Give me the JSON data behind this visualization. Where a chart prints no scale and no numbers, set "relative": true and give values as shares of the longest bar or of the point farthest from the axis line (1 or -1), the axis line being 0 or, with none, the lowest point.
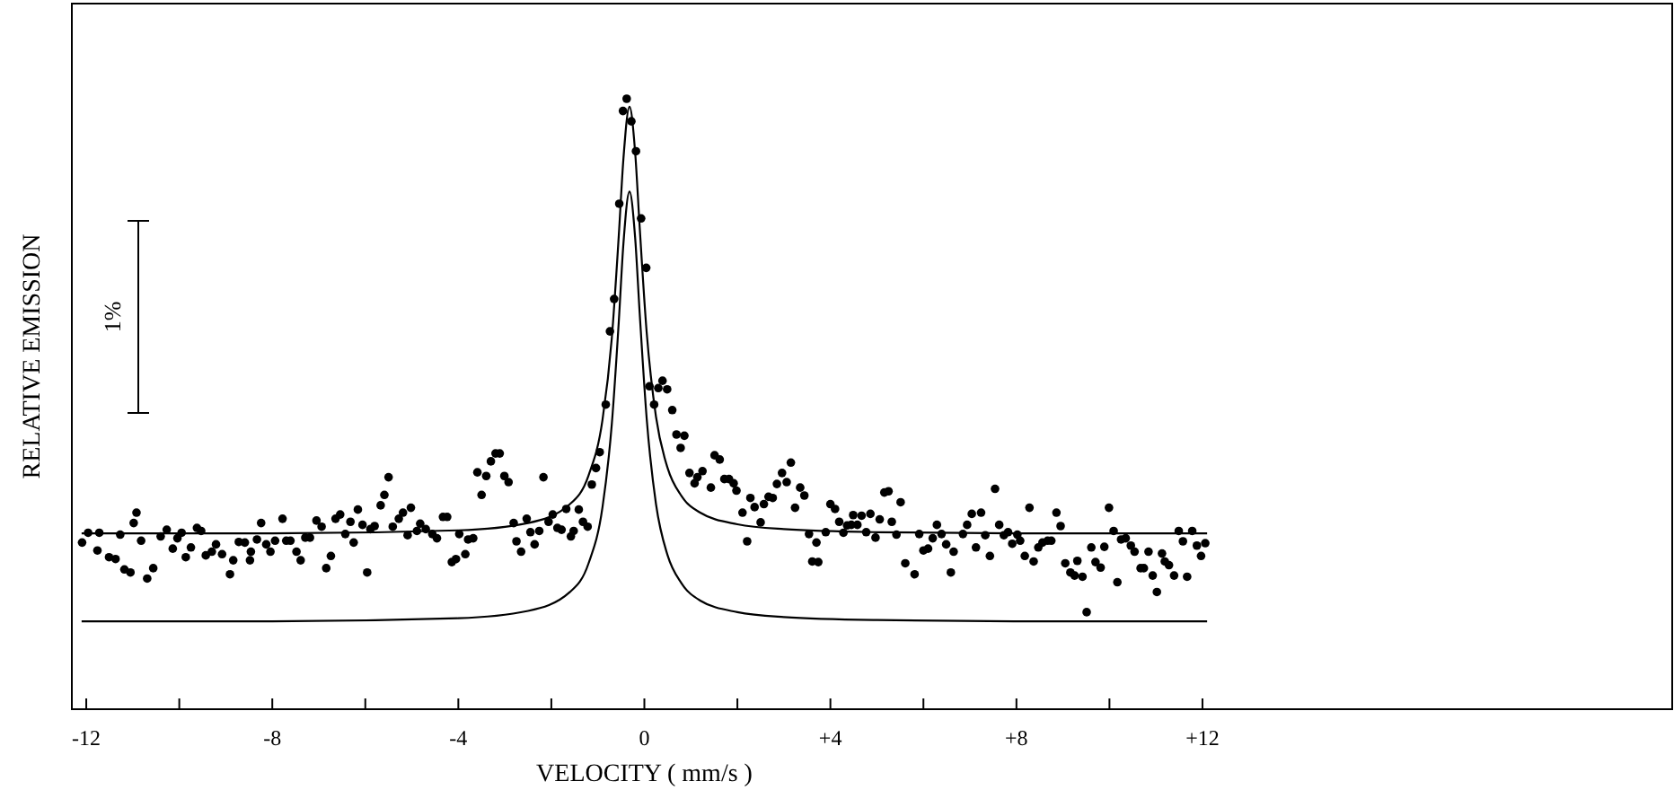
{
  "chart_data": {
    "type": "scatter",
    "xlabel": "VELOCITY ( mm/s )",
    "ylabel": "RELATIVE EMISSION",
    "relative": true,
    "annotations": [
      "1%"
    ],
    "xlim": [
      -12.31,
      22.1
    ],
    "xticks": [
      -12,
      {
        "value": -10,
        "label": null
      },
      -8,
      {
        "value": -6,
        "label": null
      },
      -4,
      {
        "value": -2,
        "label": null
      },
      0,
      {
        "value": 2,
        "label": null
      },
      {
        "value": 4,
        "label": "+4"
      },
      {
        "value": 6,
        "label": null
      },
      {
        "value": 8,
        "label": "+8"
      },
      {
        "value": 10,
        "label": null
      },
      {
        "value": 12,
        "label": "+12"
      }
    ],
    "series": [
      {
        "type": "scatter",
        "color": "#000000",
        "marker": "circle",
        "x": [
          -12.09,
          -11.96,
          -11.72,
          -11.76,
          -11.51,
          -11.37,
          -11.27,
          -11.18,
          -11.05,
          -10.98,
          -10.92,
          -10.82,
          -10.69,
          -10.56,
          -10.4,
          -10.27,
          -10.14,
          -10.04,
          -9.95,
          -9.86,
          -9.75,
          -9.62,
          -9.53,
          -9.43,
          -9.3,
          -9.21,
          -9.08,
          -8.91,
          -8.84,
          -8.72,
          -8.59,
          -8.48,
          -8.46,
          -8.33,
          -8.24,
          -8.13,
          -8.04,
          -7.94,
          -7.78,
          -7.7,
          -7.61,
          -7.48,
          -7.39,
          -7.29,
          -7.19,
          -7.05,
          -6.94,
          -6.84,
          -6.74,
          -6.64,
          -6.54,
          -6.43,
          -6.32,
          -6.25,
          -6.16,
          -6.06,
          -5.96,
          -5.89,
          -5.8,
          -5.67,
          -5.59,
          -5.5,
          -5.41,
          -5.28,
          -5.19,
          -5.09,
          -5.02,
          -4.89,
          -4.82,
          -4.7,
          -4.56,
          -4.46,
          -4.33,
          -4.24,
          -4.14,
          -4.05,
          -3.98,
          -3.85,
          -3.79,
          -3.68,
          -3.59,
          -3.5,
          -3.4,
          -3.3,
          -3.2,
          -3.11,
          -3.01,
          -2.92,
          -2.81,
          -2.75,
          -2.65,
          -2.53,
          -2.45,
          -2.36,
          -2.26,
          -2.17,
          -2.06,
          -1.97,
          -1.87,
          -1.78,
          -1.68,
          -1.58,
          -1.52,
          -1.41,
          -1.32,
          -1.22,
          -1.13,
          -1.04,
          -0.96,
          -0.83,
          -0.74,
          -0.65,
          -0.54,
          -0.46,
          -0.38,
          -0.28,
          -0.18,
          -0.07,
          0.04,
          0.11,
          0.21,
          0.3,
          0.39,
          0.49,
          0.6,
          0.69,
          0.86,
          0.78,
          0.97,
          1.08,
          1.14,
          1.25,
          1.43,
          1.51,
          1.62,
          1.72,
          1.82,
          1.92,
          1.98,
          2.11,
          2.21,
          2.28,
          2.37,
          2.5,
          2.57,
          2.67,
          2.76,
          2.85,
          2.96,
          3.06,
          3.15,
          3.24,
          3.35,
          3.44,
          3.54,
          3.61,
          3.7,
          3.74,
          3.9,
          4.0,
          4.1,
          4.19,
          4.28,
          4.36,
          4.45,
          4.49,
          4.58,
          4.67,
          4.77,
          4.86,
          4.97,
          5.06,
          5.16,
          5.25,
          5.32,
          5.42,
          5.51,
          5.61,
          5.81,
          5.91,
          6.0,
          6.1,
          6.2,
          6.29,
          6.39,
          6.49,
          6.59,
          6.65,
          6.85,
          6.94,
          7.04,
          7.13,
          7.24,
          7.33,
          7.43,
          7.54,
          7.63,
          7.73,
          7.82,
          7.91,
          8.02,
          8.08,
          8.18,
          8.28,
          8.37,
          8.47,
          8.56,
          8.67,
          8.75,
          8.86,
          8.95,
          9.05,
          9.16,
          9.25,
          9.31,
          9.42,
          9.51,
          9.61,
          9.7,
          9.81,
          9.89,
          9.99,
          10.09,
          10.17,
          10.25,
          10.35,
          10.46,
          10.54,
          10.67,
          10.74,
          10.84,
          10.93,
          11.02,
          11.13,
          11.19,
          11.28,
          11.39,
          11.49,
          11.58,
          11.67,
          11.78,
          11.88,
          11.97,
          12.06
        ],
        "values": [
          0.273,
          0.289,
          0.289,
          0.26,
          0.249,
          0.246,
          0.286,
          0.229,
          0.224,
          0.305,
          0.322,
          0.276,
          0.214,
          0.231,
          0.283,
          0.294,
          0.263,
          0.28,
          0.289,
          0.249,
          0.265,
          0.297,
          0.292,
          0.252,
          0.258,
          0.27,
          0.254,
          0.221,
          0.244,
          0.274,
          0.273,
          0.244,
          0.258,
          0.278,
          0.305,
          0.27,
          0.258,
          0.276,
          0.312,
          0.276,
          0.276,
          0.258,
          0.244,
          0.281,
          0.281,
          0.309,
          0.299,
          0.231,
          0.251,
          0.312,
          0.319,
          0.287,
          0.307,
          0.273,
          0.327,
          0.302,
          0.224,
          0.295,
          0.3,
          0.334,
          0.351,
          0.38,
          0.299,
          0.312,
          0.322,
          0.285,
          0.33,
          0.292,
          0.304,
          0.295,
          0.287,
          0.28,
          0.315,
          0.315,
          0.241,
          0.246,
          0.287,
          0.254,
          0.278,
          0.28,
          0.388,
          0.351,
          0.382,
          0.406,
          0.419,
          0.419,
          0.382,
          0.372,
          0.305,
          0.275,
          0.258,
          0.312,
          0.29,
          0.27,
          0.292,
          0.38,
          0.307,
          0.319,
          0.297,
          0.294,
          0.328,
          0.283,
          0.292,
          0.327,
          0.307,
          0.299,
          0.368,
          0.395,
          0.421,
          0.499,
          0.619,
          0.672,
          0.828,
          0.98,
          1.0,
          0.963,
          0.914,
          0.804,
          0.723,
          0.529,
          0.499,
          0.526,
          0.538,
          0.524,
          0.49,
          0.45,
          0.448,
          0.428,
          0.387,
          0.37,
          0.38,
          0.39,
          0.363,
          0.416,
          0.409,
          0.377,
          0.377,
          0.37,
          0.358,
          0.322,
          0.275,
          0.346,
          0.331,
          0.306,
          0.336,
          0.348,
          0.346,
          0.369,
          0.387,
          0.372,
          0.404,
          0.33,
          0.363,
          0.35,
          0.287,
          0.242,
          0.273,
          0.241,
          0.29,
          0.336,
          0.328,
          0.307,
          0.289,
          0.301,
          0.302,
          0.318,
          0.302,
          0.317,
          0.29,
          0.32,
          0.281,
          0.311,
          0.355,
          0.357,
          0.307,
          0.286,
          0.339,
          0.239,
          0.221,
          0.287,
          0.26,
          0.263,
          0.28,
          0.302,
          0.287,
          0.27,
          0.224,
          0.258,
          0.287,
          0.302,
          0.32,
          0.265,
          0.322,
          0.285,
          0.251,
          0.361,
          0.302,
          0.285,
          0.29,
          0.271,
          0.286,
          0.276,
          0.251,
          0.33,
          0.242,
          0.265,
          0.273,
          0.276,
          0.276,
          0.322,
          0.3,
          0.239,
          0.224,
          0.219,
          0.243,
          0.217,
          0.159,
          0.265,
          0.241,
          0.232,
          0.266,
          0.33,
          0.292,
          0.208,
          0.278,
          0.28,
          0.268,
          0.258,
          0.231,
          0.231,
          0.258,
          0.219,
          0.192,
          0.255,
          0.242,
          0.236,
          0.219,
          0.292,
          0.275,
          0.217,
          0.292,
          0.268,
          0.251,
          0.272
        ]
      },
      {
        "type": "line",
        "color": "#000000",
        "x": [
          -12.1,
          -8,
          -4,
          -2.5,
          -1.6,
          -1.2,
          -0.9,
          -0.7,
          -0.55,
          -0.45,
          -0.32,
          -0.2,
          -0.1,
          0.05,
          0.25,
          0.5,
          0.8,
          1.2,
          2,
          3,
          5,
          8,
          12.1
        ],
        "values": [
          0.288,
          0.288,
          0.293,
          0.305,
          0.336,
          0.383,
          0.474,
          0.608,
          0.776,
          0.902,
          0.987,
          0.914,
          0.789,
          0.617,
          0.479,
          0.395,
          0.349,
          0.322,
          0.303,
          0.295,
          0.29,
          0.288,
          0.288
        ]
      },
      {
        "type": "line",
        "color": "#000000",
        "x": [
          -12.1,
          -8,
          -4,
          -2.5,
          -1.6,
          -1.2,
          -0.9,
          -0.7,
          -0.55,
          -0.45,
          -0.32,
          -0.2,
          -0.1,
          0.05,
          0.25,
          0.5,
          0.8,
          1.2,
          2,
          3,
          5,
          8,
          12.1
        ],
        "values": [
          0.144,
          0.144,
          0.149,
          0.161,
          0.192,
          0.239,
          0.331,
          0.467,
          0.635,
          0.763,
          0.848,
          0.774,
          0.648,
          0.476,
          0.336,
          0.252,
          0.206,
          0.178,
          0.159,
          0.151,
          0.146,
          0.144,
          0.144
        ]
      }
    ]
  }
}
